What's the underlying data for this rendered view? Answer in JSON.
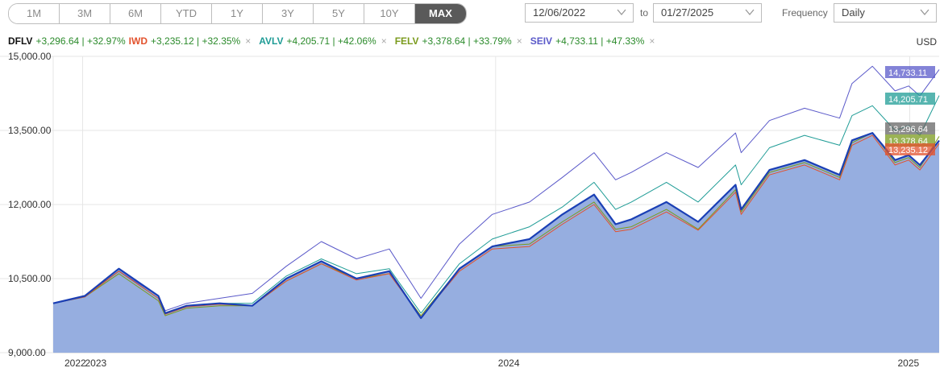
{
  "toolbar": {
    "ranges": [
      "1M",
      "3M",
      "6M",
      "YTD",
      "1Y",
      "3Y",
      "5Y",
      "10Y",
      "MAX"
    ],
    "active_range": "MAX",
    "start_date": "12/06/2022",
    "to_label": "to",
    "end_date": "01/27/2025",
    "frequency_label": "Frequency",
    "frequency_value": "Daily"
  },
  "currency": "USD",
  "colors": {
    "DFLV": "#1a3fb5",
    "IWD": "#e2522d",
    "AVLV": "#1f9c96",
    "FELV": "#7a9a1c",
    "SEIV": "#5a59c9",
    "area_fill": "#96aee0",
    "change_positive": "#2a8a2a"
  },
  "legend": [
    {
      "ticker": "DFLV",
      "change": "+3,296.64 | +32.97%"
    },
    {
      "ticker": "IWD",
      "change": "+3,235.12 | +32.35%"
    },
    {
      "ticker": "AVLV",
      "change": "+4,205.71 | +42.06%"
    },
    {
      "ticker": "FELV",
      "change": "+3,378.64 | +33.79%"
    },
    {
      "ticker": "SEIV",
      "change": "+4,733.11 | +47.33%"
    }
  ],
  "chart_data": {
    "type": "line",
    "title": "",
    "xlabel": "",
    "ylabel": "",
    "ylim": [
      9000,
      15000
    ],
    "y_ticks": [
      "15,000.00",
      "13,500.00",
      "12,000.00",
      "10,500.00",
      "9,000.00"
    ],
    "y_tick_values": [
      15000,
      13500,
      12000,
      10500,
      9000
    ],
    "x_ticks": [
      "2022",
      "2023",
      "2024",
      "2025"
    ],
    "x_tick_dates": [
      "2022-12-06",
      "2023-01-01",
      "2024-01-01",
      "2025-01-01"
    ],
    "x_range": [
      "2022-12-06",
      "2025-01-27"
    ],
    "grid": true,
    "legend_position": "top-left",
    "x": [
      "2022-12-06",
      "2023-01-03",
      "2023-02-02",
      "2023-03-09",
      "2023-03-15",
      "2023-04-03",
      "2023-05-02",
      "2023-05-31",
      "2023-06-30",
      "2023-07-31",
      "2023-08-31",
      "2023-09-29",
      "2023-10-27",
      "2023-11-30",
      "2023-12-29",
      "2024-01-31",
      "2024-02-29",
      "2024-03-28",
      "2024-04-16",
      "2024-04-30",
      "2024-05-31",
      "2024-06-28",
      "2024-07-31",
      "2024-08-05",
      "2024-08-30",
      "2024-09-30",
      "2024-10-31",
      "2024-11-11",
      "2024-11-29",
      "2024-12-19",
      "2024-12-31",
      "2025-01-10",
      "2025-01-27"
    ],
    "series": [
      {
        "name": "DFLV",
        "values": [
          10000,
          10150,
          10700,
          10150,
          9800,
          9950,
          10000,
          9950,
          10500,
          10850,
          10500,
          10650,
          9700,
          10700,
          11150,
          11300,
          11800,
          12200,
          11600,
          11700,
          12050,
          11650,
          12400,
          11900,
          12700,
          12900,
          12600,
          13300,
          13450,
          12900,
          13000,
          12800,
          13297
        ]
      },
      {
        "name": "IWD",
        "values": [
          10000,
          10130,
          10650,
          10100,
          9780,
          9930,
          9980,
          9950,
          10450,
          10800,
          10470,
          10600,
          9720,
          10650,
          11100,
          11150,
          11600,
          12000,
          11450,
          11500,
          11850,
          11480,
          12250,
          11800,
          12600,
          12800,
          12500,
          13200,
          13400,
          12800,
          12900,
          12700,
          13235
        ]
      },
      {
        "name": "AVLV",
        "values": [
          10000,
          10140,
          10650,
          10100,
          9800,
          9950,
          10000,
          10000,
          10550,
          10900,
          10600,
          10700,
          9800,
          10800,
          11300,
          11550,
          11950,
          12450,
          11900,
          12050,
          12450,
          12050,
          12800,
          12400,
          13150,
          13400,
          13200,
          13800,
          14000,
          13500,
          13600,
          13400,
          14206
        ]
      },
      {
        "name": "FELV",
        "values": [
          10000,
          10130,
          10600,
          10050,
          9750,
          9900,
          9950,
          9950,
          10450,
          10800,
          10500,
          10600,
          9750,
          10700,
          11150,
          11200,
          11650,
          12050,
          11500,
          11550,
          11900,
          11500,
          12300,
          11850,
          12650,
          12850,
          12550,
          13250,
          13450,
          12850,
          12950,
          12750,
          13379
        ]
      },
      {
        "name": "SEIV",
        "values": [
          10000,
          10150,
          10650,
          10150,
          9850,
          10000,
          10100,
          10200,
          10750,
          11250,
          10900,
          11100,
          10100,
          11200,
          11800,
          12050,
          12550,
          13050,
          12500,
          12650,
          13050,
          12750,
          13450,
          13050,
          13700,
          13950,
          13750,
          14450,
          14800,
          14300,
          14400,
          14200,
          14733
        ]
      }
    ],
    "end_labels": [
      {
        "ticker": "SEIV",
        "label": "14,733.11"
      },
      {
        "ticker": "AVLV",
        "label": "14,205.71"
      },
      {
        "ticker": "DFLV",
        "label": "13,296.64"
      },
      {
        "ticker": "FELV",
        "label": "13,378.64"
      },
      {
        "ticker": "IWD",
        "label": "13,235.12"
      }
    ]
  }
}
